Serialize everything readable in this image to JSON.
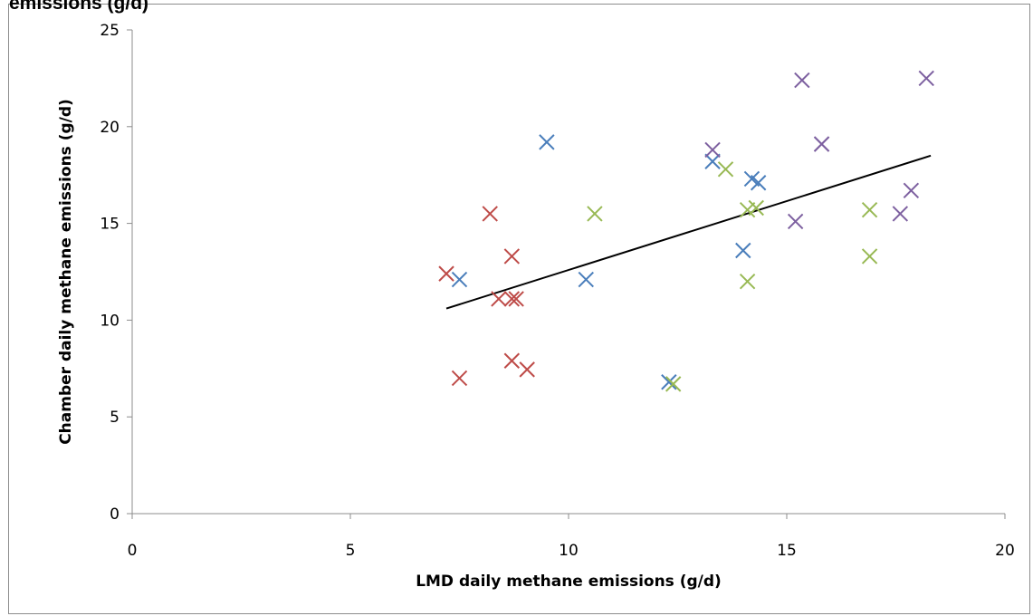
{
  "chart_data": {
    "type": "scatter",
    "title": "emissions (g/d)",
    "xlabel": "LMD daily methane emissions (g/d)",
    "ylabel": "Chamber daily methane emissions (g/d)",
    "xlim": [
      0,
      20
    ],
    "ylim": [
      0,
      25
    ],
    "xticks": [
      0,
      5,
      10,
      15,
      20
    ],
    "yticks": [
      0,
      5,
      10,
      15,
      20,
      25
    ],
    "grid": false,
    "legend": "none",
    "marker": "x",
    "series": [
      {
        "color": "#4a7ebb",
        "points": [
          [
            7.5,
            12.1
          ],
          [
            9.5,
            19.2
          ],
          [
            10.4,
            12.1
          ],
          [
            12.3,
            6.8
          ],
          [
            13.3,
            18.2
          ],
          [
            14.0,
            13.6
          ],
          [
            14.2,
            17.3
          ],
          [
            14.35,
            17.1
          ]
        ]
      },
      {
        "color": "#be4b48",
        "points": [
          [
            7.2,
            12.4
          ],
          [
            7.5,
            7.0
          ],
          [
            8.2,
            15.5
          ],
          [
            8.4,
            11.1
          ],
          [
            8.7,
            11.1
          ],
          [
            8.7,
            13.3
          ],
          [
            8.8,
            11.1
          ],
          [
            8.7,
            7.9
          ],
          [
            9.05,
            7.45
          ]
        ]
      },
      {
        "color": "#98b954",
        "points": [
          [
            10.6,
            15.5
          ],
          [
            12.4,
            6.7
          ],
          [
            13.6,
            17.8
          ],
          [
            14.1,
            12.0
          ],
          [
            14.1,
            15.7
          ],
          [
            14.3,
            15.8
          ],
          [
            16.9,
            15.7
          ],
          [
            16.9,
            13.3
          ]
        ]
      },
      {
        "color": "#7d60a0",
        "points": [
          [
            13.3,
            18.8
          ],
          [
            15.2,
            15.1
          ],
          [
            15.35,
            22.4
          ],
          [
            15.8,
            19.1
          ],
          [
            15.8,
            19.1
          ],
          [
            17.6,
            15.5
          ],
          [
            17.85,
            16.7
          ],
          [
            18.2,
            22.5
          ]
        ]
      }
    ],
    "trendline": {
      "color": "#000000",
      "from": [
        7.2,
        10.6
      ],
      "to": [
        18.3,
        18.5
      ]
    }
  }
}
